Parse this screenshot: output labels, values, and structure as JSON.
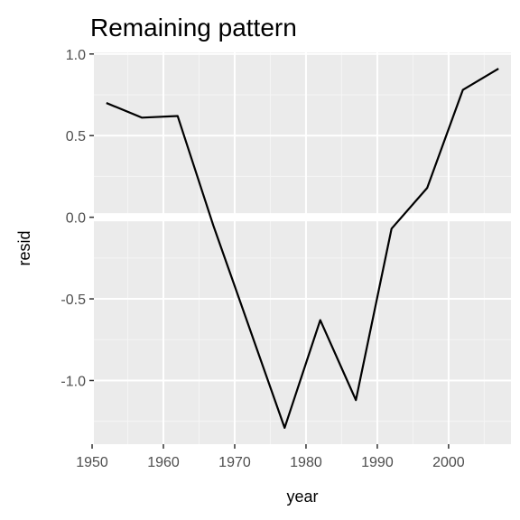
{
  "chart_data": {
    "type": "line",
    "title": "Remaining pattern",
    "xlabel": "year",
    "ylabel": "resid",
    "x": [
      1952,
      1957,
      1962,
      1967,
      1972,
      1977,
      1982,
      1987,
      1992,
      1997,
      2002,
      2007
    ],
    "series": [
      {
        "values": [
          0.7,
          0.61,
          0.62,
          -0.05,
          -0.67,
          -1.29,
          -0.63,
          -1.12,
          -0.07,
          0.18,
          0.78,
          0.91
        ]
      }
    ],
    "xticks": [
      1950,
      1960,
      1970,
      1980,
      1990,
      2000
    ],
    "xtick_labels": [
      "1950",
      "1960",
      "1970",
      "1980",
      "1990",
      "2000"
    ],
    "yticks": [
      1.0,
      0.5,
      0.0,
      -0.5,
      -1.0
    ],
    "ytick_labels": [
      "1.0",
      "0.5",
      "0.0",
      "-0.5",
      "-1.0"
    ],
    "xlim": [
      1950.25,
      2008.75
    ],
    "ylim": [
      -1.39,
      1.01
    ],
    "reference_line_y": 0,
    "grid": true,
    "legend": "none",
    "colors": {
      "panel_background": "#ebebeb",
      "grid_major": "#ffffff",
      "grid_minor": "#f5f5f5",
      "line": "#000000",
      "reference_line": "#ffffff",
      "tick_mark": "#333333"
    }
  }
}
